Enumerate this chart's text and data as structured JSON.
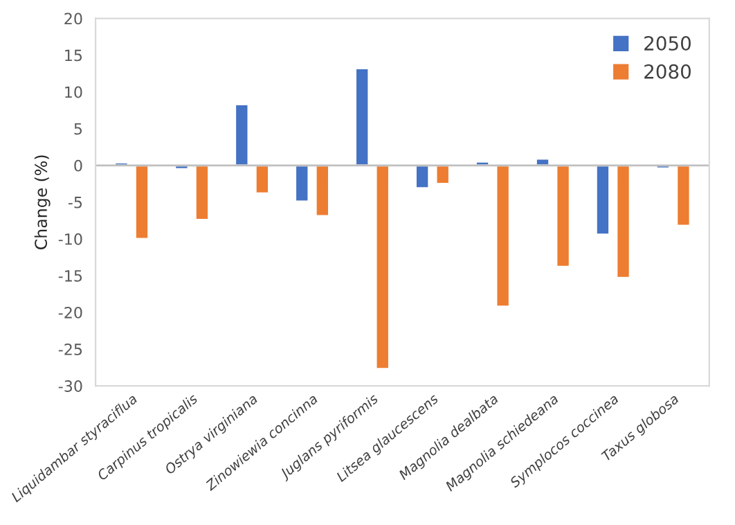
{
  "chart_data": {
    "type": "bar",
    "ylabel": "Change (%)",
    "categories": [
      "Liquidambar styraciflua",
      "Carpinus tropicalis",
      "Ostrya virginiana",
      "Zinowiewia concinna",
      "Juglans pyriformis",
      "Litsea glaucescens",
      "Magnolia dealbata",
      "Magnolia schiedeana",
      "Symplocos coccinea",
      "Taxus globosa"
    ],
    "series": [
      {
        "name": "2050",
        "color": "#4472c4",
        "values": [
          0.4,
          -0.5,
          8.3,
          -4.9,
          13.2,
          -3.1,
          0.5,
          0.9,
          -9.4,
          -0.4
        ]
      },
      {
        "name": "2080",
        "color": "#ed7d31",
        "values": [
          -10,
          -7.4,
          -3.8,
          -6.9,
          -27.7,
          -2.5,
          -19.2,
          -13.8,
          -15.3,
          -8.2
        ]
      }
    ],
    "ylim": [
      -30,
      20
    ],
    "yticks": [
      -30,
      -25,
      -20,
      -15,
      -10,
      -5,
      0,
      5,
      10,
      15,
      20
    ],
    "ref_lines": [
      {
        "axis": "y",
        "value": 0,
        "color": "#bfbfbf"
      }
    ],
    "grid": false,
    "legend": "top right"
  }
}
